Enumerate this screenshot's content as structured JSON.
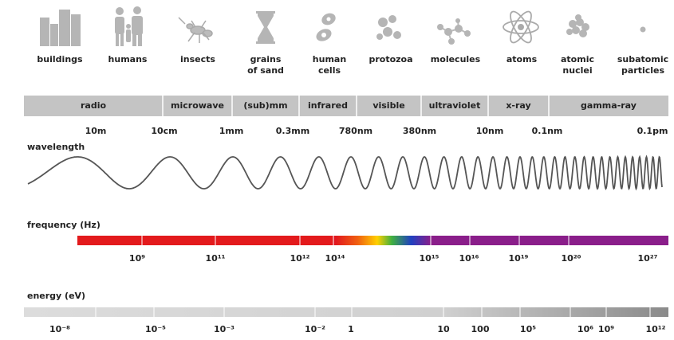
{
  "objects": [
    {
      "label": [
        "buildings"
      ]
    },
    {
      "label": [
        "humans"
      ]
    },
    {
      "label": [
        "insects"
      ]
    },
    {
      "label": [
        "grains",
        "of sand"
      ]
    },
    {
      "label": [
        "human",
        "cells"
      ]
    },
    {
      "label": [
        "protozoa"
      ]
    },
    {
      "label": [
        "molecules"
      ]
    },
    {
      "label": [
        "atoms"
      ]
    },
    {
      "label": [
        "atomic",
        "nuclei"
      ]
    },
    {
      "label": [
        "subatomic",
        "particles"
      ]
    }
  ],
  "bands": [
    "radio",
    "microwave",
    "(sub)mm",
    "infrared",
    "visible",
    "ultraviolet",
    "x-ray",
    "gamma-ray"
  ],
  "wavelength": {
    "title": "wavelength",
    "labels": [
      "10m",
      "10cm",
      "1mm",
      "0.3mm",
      "780nm",
      "380nm",
      "10nm",
      "0.1nm",
      "0.1pm"
    ]
  },
  "frequency": {
    "title": "frequency (Hz)",
    "labels": [
      "10⁹",
      "10¹¹",
      "10¹²",
      "10¹⁴",
      "10¹⁵",
      "10¹⁶",
      "10¹⁹",
      "10²⁰",
      "10²⁷"
    ]
  },
  "energy": {
    "title": "energy (eV)",
    "labels": [
      "10⁻⁸",
      "10⁻⁵",
      "10⁻³",
      "10⁻²",
      "1",
      "10",
      "100",
      "10⁵",
      "10⁶",
      "10⁹",
      "10¹²"
    ]
  }
}
